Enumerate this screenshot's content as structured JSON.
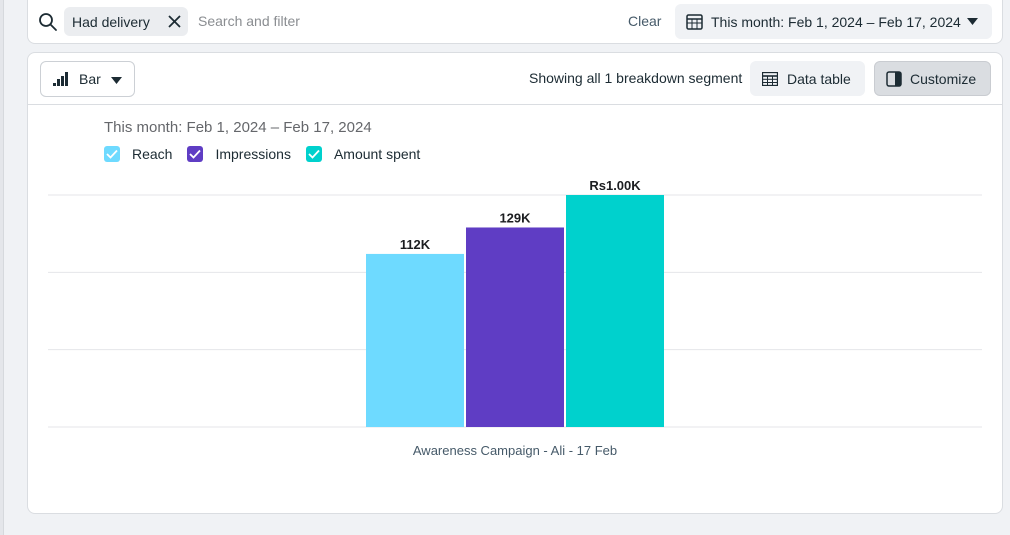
{
  "filter_bar": {
    "chip_label": "Had delivery",
    "search_placeholder": "Search and filter",
    "clear_label": "Clear",
    "date_range_label": "This month: Feb 1, 2024 – Feb 17, 2024"
  },
  "toolbar": {
    "chart_type_label": "Bar",
    "segment_text": "Showing all 1 breakdown segment",
    "data_table_label": "Data table",
    "customize_label": "Customize"
  },
  "colors": {
    "reach": "#6edaff",
    "impressions": "#5f3dc4",
    "amount_spent": "#00d1cd"
  },
  "icons": [
    "search-icon",
    "close-icon",
    "calendar-icon",
    "chevron-down-icon",
    "bar-chart-icon",
    "table-icon",
    "columns-icon",
    "check-icon"
  ],
  "chart_data": {
    "type": "bar",
    "title": "This month: Feb 1, 2024 – Feb 17, 2024",
    "categories": [
      "Awareness Campaign - Ali - 17 Feb"
    ],
    "series": [
      {
        "name": "Reach",
        "values": [
          112000
        ],
        "label": "112K",
        "scaled": 0.746
      },
      {
        "name": "Impressions",
        "values": [
          129000
        ],
        "label": "129K",
        "scaled": 0.86
      },
      {
        "name": "Amount spent",
        "values": [
          1000
        ],
        "label": "Rs1.00K",
        "scaled": 1.0
      }
    ],
    "legend": "top-left",
    "grid": true,
    "axis_labels_visible": false
  }
}
